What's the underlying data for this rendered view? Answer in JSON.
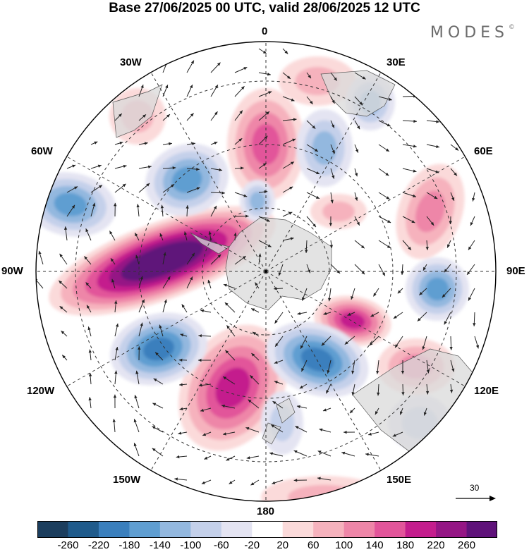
{
  "title": "Base 27/06/2025 00 UTC, valid 28/06/2025 12 UTC",
  "brand": "MODES",
  "brand_mark": "©",
  "longitude_labels": {
    "top": "0",
    "top_right": "30E",
    "upper_right": "60E",
    "right": "90E",
    "lower_right": "120E",
    "bottom_right": "150E",
    "bottom": "180",
    "bottom_left": "150W",
    "lower_left": "120W",
    "left": "90W",
    "upper_left": "60W",
    "top_left": "30W"
  },
  "reference_vector": "30",
  "colorbar": {
    "colors": [
      "#1c3e5e",
      "#1f5b8c",
      "#3a7fbd",
      "#5f9ed1",
      "#93b8df",
      "#c4d0ea",
      "#e4e4f2",
      "#ffffff",
      "#fbdada",
      "#f6b2bd",
      "#ee86a8",
      "#e2559a",
      "#c41d8d",
      "#951685",
      "#5f127a"
    ],
    "ticks": [
      "-260",
      "-220",
      "-180",
      "-140",
      "-100",
      "-60",
      "-20",
      "20",
      "60",
      "100",
      "140",
      "180",
      "220",
      "260"
    ]
  },
  "palette": {
    "land": "#d9d9d9",
    "ocean": "#ffffff",
    "grid": "#333333",
    "arrow": "#222222"
  }
}
